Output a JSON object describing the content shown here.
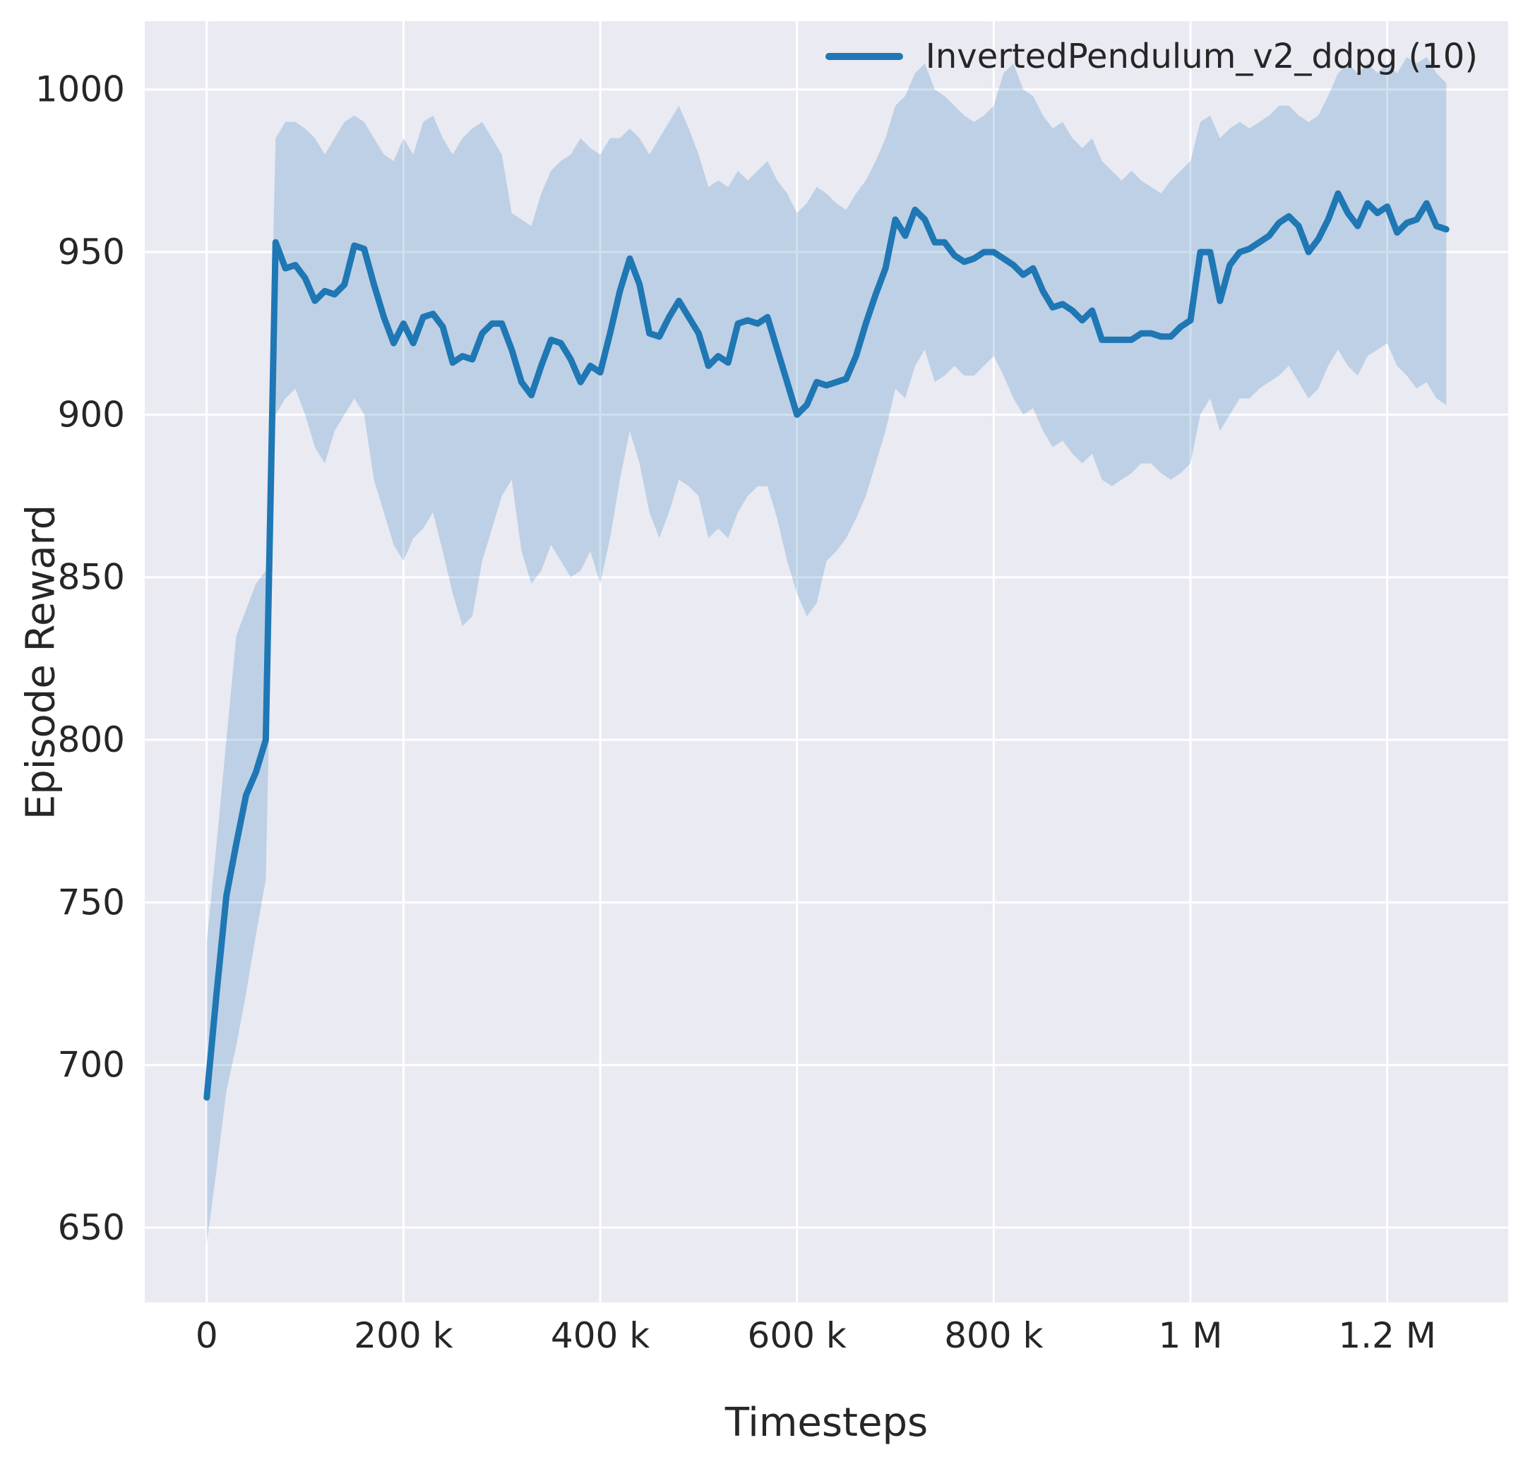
{
  "chart_data": {
    "type": "line",
    "title": "",
    "xlabel": "Timesteps",
    "ylabel": "Episode Reward",
    "legend_position": "upper right",
    "grid": true,
    "xlim": [
      -63000,
      1323000
    ],
    "ylim": [
      627,
      1021
    ],
    "x_unit": "thousands of timesteps",
    "x_ticks": [
      {
        "value": 0,
        "label": "0"
      },
      {
        "value": 200000,
        "label": "200 k"
      },
      {
        "value": 400000,
        "label": "400 k"
      },
      {
        "value": 600000,
        "label": "600 k"
      },
      {
        "value": 800000,
        "label": "800 k"
      },
      {
        "value": 1000000,
        "label": "1 M"
      },
      {
        "value": 1200000,
        "label": "1.2 M"
      }
    ],
    "y_ticks": [
      {
        "value": 650,
        "label": "650"
      },
      {
        "value": 700,
        "label": "700"
      },
      {
        "value": 750,
        "label": "750"
      },
      {
        "value": 800,
        "label": "800"
      },
      {
        "value": 850,
        "label": "850"
      },
      {
        "value": 900,
        "label": "900"
      },
      {
        "value": 950,
        "label": "950"
      },
      {
        "value": 1000,
        "label": "1000"
      }
    ],
    "colors": {
      "line": "#1f77b4",
      "band_opacity": 0.22,
      "axes_bg": "#eaeaf2",
      "grid": "#ffffff",
      "tick_text": "#262626"
    },
    "x_thousands": [
      0,
      10,
      20,
      30,
      40,
      50,
      60,
      70,
      80,
      90,
      100,
      110,
      120,
      130,
      140,
      150,
      160,
      170,
      180,
      190,
      200,
      210,
      220,
      230,
      240,
      250,
      260,
      270,
      280,
      290,
      300,
      310,
      320,
      330,
      340,
      350,
      360,
      370,
      380,
      390,
      400,
      410,
      420,
      430,
      440,
      450,
      460,
      470,
      480,
      490,
      500,
      510,
      520,
      530,
      540,
      550,
      560,
      570,
      580,
      590,
      600,
      610,
      620,
      630,
      640,
      650,
      660,
      670,
      680,
      690,
      700,
      710,
      720,
      730,
      740,
      750,
      760,
      770,
      780,
      790,
      800,
      810,
      820,
      830,
      840,
      850,
      860,
      870,
      880,
      890,
      900,
      910,
      920,
      930,
      940,
      950,
      960,
      970,
      980,
      990,
      1000,
      1010,
      1020,
      1030,
      1040,
      1050,
      1060,
      1070,
      1080,
      1090,
      1100,
      1110,
      1120,
      1130,
      1140,
      1150,
      1160,
      1170,
      1180,
      1190,
      1200,
      1210,
      1220,
      1230,
      1240,
      1250,
      1260
    ],
    "series": [
      {
        "name": "InvertedPendulum_v2_ddpg (10)",
        "mean": [
          690,
          722,
          752,
          768,
          783,
          790,
          800,
          953,
          945,
          946,
          942,
          935,
          938,
          937,
          940,
          952,
          951,
          940,
          930,
          922,
          928,
          922,
          930,
          931,
          927,
          916,
          918,
          917,
          925,
          928,
          928,
          920,
          910,
          906,
          915,
          923,
          922,
          917,
          910,
          915,
          913,
          925,
          938,
          948,
          940,
          925,
          924,
          930,
          935,
          930,
          925,
          915,
          918,
          916,
          928,
          929,
          928,
          930,
          920,
          910,
          900,
          903,
          910,
          909,
          910,
          911,
          918,
          928,
          937,
          945,
          960,
          955,
          963,
          960,
          953,
          953,
          949,
          947,
          948,
          950,
          950,
          948,
          946,
          943,
          945,
          938,
          933,
          934,
          932,
          929,
          932,
          923,
          923,
          923,
          923,
          925,
          925,
          924,
          924,
          927,
          929,
          950,
          950,
          935,
          946,
          950,
          951,
          953,
          955,
          959,
          961,
          958,
          950,
          954,
          960,
          968,
          962,
          958,
          965,
          962,
          964,
          956,
          959,
          960,
          965,
          958,
          957
        ],
        "band_low": [
          645,
          668,
          692,
          706,
          722,
          740,
          757,
          900,
          905,
          908,
          900,
          890,
          885,
          895,
          900,
          905,
          900,
          880,
          870,
          860,
          855,
          862,
          865,
          870,
          858,
          845,
          835,
          838,
          855,
          865,
          875,
          880,
          858,
          848,
          852,
          860,
          855,
          850,
          852,
          858,
          848,
          862,
          880,
          895,
          885,
          870,
          862,
          870,
          880,
          878,
          875,
          862,
          865,
          862,
          870,
          875,
          878,
          878,
          868,
          855,
          845,
          838,
          842,
          855,
          858,
          862,
          868,
          875,
          885,
          895,
          908,
          905,
          915,
          920,
          910,
          912,
          915,
          912,
          912,
          915,
          918,
          912,
          905,
          900,
          902,
          895,
          890,
          892,
          888,
          885,
          888,
          880,
          878,
          880,
          882,
          885,
          885,
          882,
          880,
          882,
          885,
          900,
          905,
          895,
          900,
          905,
          905,
          908,
          910,
          912,
          915,
          910,
          905,
          908,
          915,
          920,
          915,
          912,
          918,
          920,
          922,
          915,
          912,
          908,
          910,
          905,
          903
        ],
        "band_high": [
          738,
          768,
          800,
          832,
          840,
          848,
          852,
          985,
          990,
          990,
          988,
          985,
          980,
          985,
          990,
          992,
          990,
          985,
          980,
          978,
          985,
          980,
          990,
          992,
          985,
          980,
          985,
          988,
          990,
          985,
          980,
          962,
          960,
          958,
          968,
          975,
          978,
          980,
          985,
          982,
          980,
          985,
          985,
          988,
          985,
          980,
          985,
          990,
          995,
          988,
          980,
          970,
          972,
          970,
          975,
          972,
          975,
          978,
          972,
          968,
          962,
          965,
          970,
          968,
          965,
          963,
          968,
          972,
          978,
          985,
          995,
          998,
          1005,
          1008,
          1000,
          998,
          995,
          992,
          990,
          992,
          995,
          1005,
          1008,
          1000,
          998,
          992,
          988,
          990,
          985,
          982,
          985,
          978,
          975,
          972,
          975,
          972,
          970,
          968,
          972,
          975,
          978,
          990,
          992,
          985,
          988,
          990,
          988,
          990,
          992,
          995,
          995,
          992,
          990,
          992,
          998,
          1005,
          1008,
          1005,
          1008,
          1005,
          1008,
          1005,
          1010,
          1008,
          1010,
          1005,
          1002
        ]
      }
    ]
  }
}
